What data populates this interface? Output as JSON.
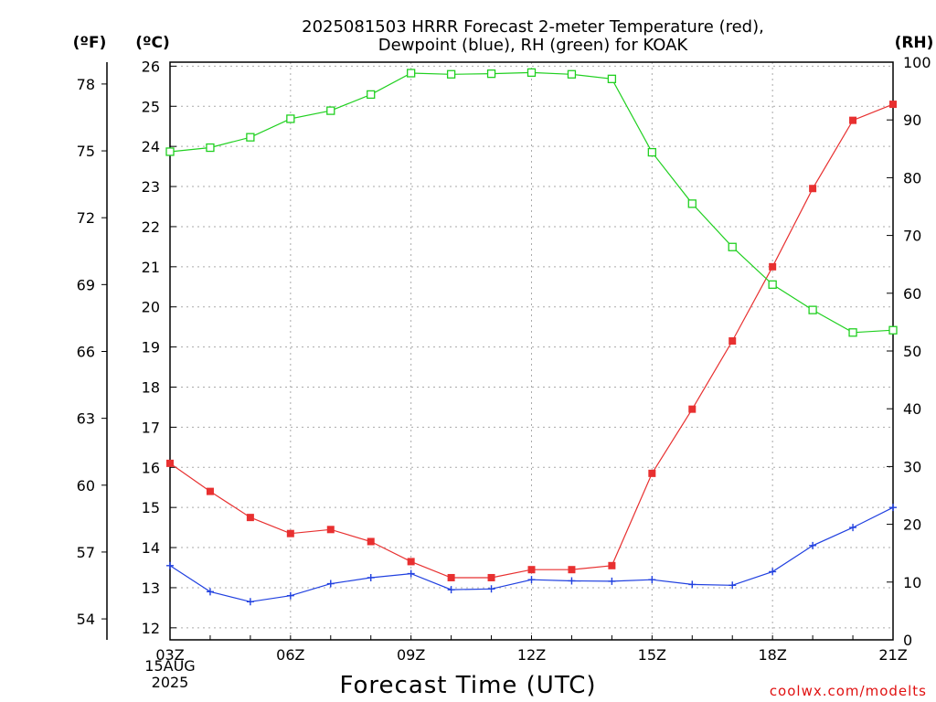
{
  "chart_data": {
    "type": "line",
    "title_line1": "2025081503 HRRR Forecast 2-meter Temperature (red),",
    "title_line2": "Dewpoint (blue), RH (green) for KOAK",
    "xlabel": "Forecast Time (UTC)",
    "credit": "coolwx.com/modelts",
    "units": {
      "fahrenheit": "(ºF)",
      "celsius": "(ºC)",
      "rh": "(RH)"
    },
    "x": [
      "03Z",
      "04Z",
      "05Z",
      "06Z",
      "07Z",
      "08Z",
      "09Z",
      "10Z",
      "11Z",
      "12Z",
      "13Z",
      "14Z",
      "15Z",
      "16Z",
      "17Z",
      "18Z",
      "19Z",
      "20Z",
      "21Z"
    ],
    "x_ticks": [
      "03Z",
      "06Z",
      "09Z",
      "12Z",
      "15Z",
      "18Z",
      "21Z"
    ],
    "x_date_line1": "15AUG",
    "x_date_line2": "2025",
    "yleft_c_ticks": [
      12,
      13,
      14,
      15,
      16,
      17,
      18,
      19,
      20,
      21,
      22,
      23,
      24,
      25,
      26
    ],
    "yleft_c_lim": [
      11.7,
      26.1
    ],
    "yleft_f_ticks": [
      54,
      57,
      60,
      63,
      66,
      69,
      72,
      75,
      78
    ],
    "yright_rh_ticks": [
      0,
      10,
      20,
      30,
      40,
      50,
      60,
      70,
      80,
      90,
      100
    ],
    "yright_rh_lim": [
      0,
      100
    ],
    "grid": true,
    "series": [
      {
        "name": "Temperature",
        "axis": "celsius",
        "color": "#e83030",
        "marker": "filled-square",
        "values": [
          16.1,
          15.4,
          14.75,
          14.35,
          14.45,
          14.15,
          13.65,
          13.25,
          13.25,
          13.45,
          13.45,
          13.55,
          15.85,
          17.45,
          19.15,
          21.0,
          22.95,
          24.65,
          25.05
        ]
      },
      {
        "name": "Dewpoint",
        "axis": "celsius",
        "color": "#2040e0",
        "marker": "plus",
        "values": [
          13.55,
          12.9,
          12.65,
          12.8,
          13.1,
          13.25,
          13.35,
          12.95,
          12.97,
          13.2,
          13.17,
          13.16,
          13.2,
          13.08,
          13.06,
          13.4,
          14.05,
          14.5,
          15.0
        ]
      },
      {
        "name": "RH",
        "axis": "rh",
        "color": "#20d020",
        "marker": "open-square",
        "values": [
          84.5,
          85.2,
          87.0,
          90.2,
          91.6,
          94.4,
          98.1,
          97.9,
          98.0,
          98.2,
          97.9,
          97.1,
          84.4,
          75.5,
          68.0,
          61.5,
          57.1,
          53.2,
          53.6
        ]
      }
    ]
  }
}
